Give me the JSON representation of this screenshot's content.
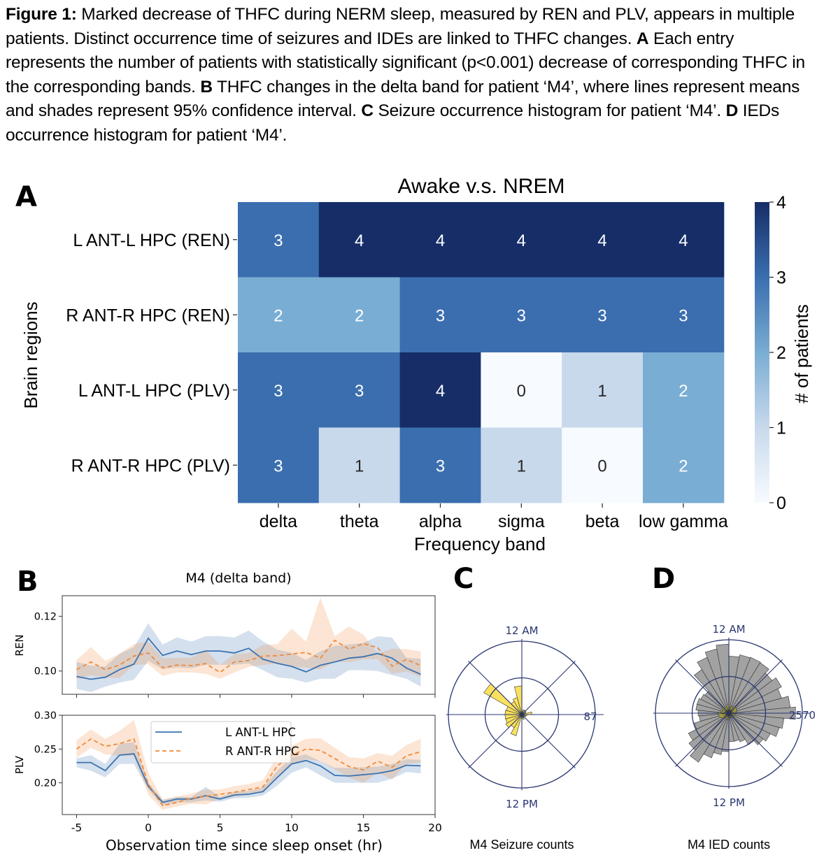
{
  "caption": {
    "segments": [
      {
        "bold": true,
        "text": "Figure 1:"
      },
      {
        "bold": false,
        "text": " Marked decrease of THFC during NERM sleep, measured by REN and PLV, appears in multiple patients. Distinct occurrence time of seizures and IDEs are linked to THFC changes. "
      },
      {
        "bold": true,
        "text": "A"
      },
      {
        "bold": false,
        "text": " Each entry represents the number of patients with statistically significant (p<0.001) decrease of corresponding THFC in the corresponding bands. "
      },
      {
        "bold": true,
        "text": "B"
      },
      {
        "bold": false,
        "text": " THFC changes in the delta band for patient ‘M4’, where lines represent means and shades represent 95% confidence interval. "
      },
      {
        "bold": true,
        "text": "C"
      },
      {
        "bold": false,
        "text": " Seizure occurrence histogram for patient ‘M4’. "
      },
      {
        "bold": true,
        "text": "D"
      },
      {
        "bold": false,
        "text": " IEDs occurrence histogram for patient ‘M4’."
      }
    ]
  },
  "panel_letters": {
    "a": "A",
    "b": "B",
    "c": "C",
    "d": "D"
  },
  "chart_data": [
    {
      "id": "A",
      "type": "heatmap",
      "title": "Awake v.s. NREM",
      "xlabel": "Frequency band",
      "ylabel": "Brain regions",
      "x_categories": [
        "delta",
        "theta",
        "alpha",
        "sigma",
        "beta",
        "low gamma"
      ],
      "y_categories": [
        "L ANT-L HPC (REN)",
        "R ANT-R HPC (REN)",
        "L ANT-L HPC (PLV)",
        "R ANT-R HPC (PLV)"
      ],
      "values": [
        [
          3,
          4,
          4,
          4,
          4,
          4
        ],
        [
          2,
          2,
          3,
          3,
          3,
          3
        ],
        [
          3,
          3,
          4,
          0,
          1,
          2
        ],
        [
          3,
          1,
          3,
          1,
          0,
          2
        ]
      ],
      "colorbar": {
        "label": "# of patients",
        "range": [
          0,
          4
        ],
        "ticks": [
          "0",
          "1",
          "2",
          "3",
          "4"
        ],
        "colormap": "Blues"
      },
      "colors": {
        "0": "#f7fbff",
        "1": "#c8d9ec",
        "2": "#7aadd3",
        "3": "#3a6eaf",
        "4": "#162d67"
      }
    },
    {
      "id": "B",
      "type": "line",
      "title": "M4 (delta band)",
      "xlabel": "Observation time since sleep onset (hr)",
      "x": [
        -5,
        -4,
        -3,
        -2,
        -1,
        0,
        1,
        2,
        3,
        4,
        5,
        6,
        7,
        8,
        9,
        10,
        11,
        12,
        13,
        14,
        15,
        16,
        17,
        18,
        19
      ],
      "xlim": [
        -6,
        20
      ],
      "xticks": [
        "-5",
        "0",
        "5",
        "10",
        "15",
        "20"
      ],
      "legend": {
        "placement": "top-center",
        "entries": [
          "L ANT-L HPC",
          "R ANT-R HPC"
        ]
      },
      "colors": {
        "L ANT-L HPC": "#3b73b0",
        "R ANT-R HPC": "#f08a3a"
      },
      "subplots": [
        {
          "ylabel": "REN",
          "ylim": [
            0.0915,
            0.1275
          ],
          "yticks": [
            "0.10",
            "0.12"
          ],
          "series": [
            {
              "name": "L ANT-L HPC",
              "values": [
                0.098,
                0.097,
                0.0977,
                0.1005,
                0.1025,
                0.112,
                0.1057,
                0.1073,
                0.106,
                0.1073,
                0.1073,
                0.1066,
                0.1083,
                0.1043,
                0.1028,
                0.1017,
                0.0997,
                0.1021,
                0.1033,
                0.1047,
                0.1052,
                0.1064,
                0.1047,
                0.1011,
                0.0988
              ],
              "ci_low": [
                0.0935,
                0.0923,
                0.0943,
                0.0958,
                0.0968,
                0.1037,
                0.1007,
                0.1013,
                0.101,
                0.1023,
                0.1023,
                0.1023,
                0.1027,
                0.1003,
                0.0977,
                0.0972,
                0.0958,
                0.0972,
                0.0972,
                0.1003,
                0.1003,
                0.1,
                0.0985,
                0.0972,
                0.0943
              ],
              "ci_high": [
                0.1033,
                0.102,
                0.1016,
                0.1063,
                0.1087,
                0.1175,
                0.1097,
                0.1123,
                0.1107,
                0.1127,
                0.1128,
                0.1122,
                0.1148,
                0.1108,
                0.1078,
                0.1067,
                0.104,
                0.1072,
                0.1092,
                0.1097,
                0.1103,
                0.1127,
                0.1122,
                0.1048,
                0.1045
              ]
            },
            {
              "name": "R ANT-R HPC",
              "values": [
                0.1005,
                0.1033,
                0.1005,
                0.1022,
                0.1055,
                0.1066,
                0.1012,
                0.1022,
                0.102,
                0.1027,
                0.0995,
                0.1033,
                0.1038,
                0.1055,
                0.1056,
                0.1062,
                0.1068,
                0.1047,
                0.1112,
                0.108,
                0.11,
                0.1085,
                0.1018,
                0.1042,
                0.102
              ],
              "ci_low": [
                0.097,
                0.0985,
                0.0975,
                0.0975,
                0.1022,
                0.1025,
                0.0982,
                0.0995,
                0.0995,
                0.099,
                0.0972,
                0.0995,
                0.1015,
                0.1022,
                0.1028,
                0.1015,
                0.1013,
                0.1005,
                0.1035,
                0.1032,
                0.1043,
                0.1043,
                0.099,
                0.0998,
                0.0978
              ],
              "ci_high": [
                0.104,
                0.1088,
                0.1037,
                0.1063,
                0.1098,
                0.1108,
                0.1047,
                0.1048,
                0.1048,
                0.1078,
                0.1022,
                0.1062,
                0.1065,
                0.1095,
                0.1098,
                0.1155,
                0.1107,
                0.1268,
                0.1127,
                0.1163,
                0.1133,
                0.1063,
                0.1082,
                0.108,
                0.1072
              ]
            }
          ]
        },
        {
          "ylabel": "PLV",
          "ylim": [
            0.153,
            0.3
          ],
          "yticks": [
            "0.20",
            "0.25",
            "0.30"
          ],
          "series": [
            {
              "name": "L ANT-L HPC",
              "values": [
                0.23,
                0.23,
                0.218,
                0.241,
                0.243,
                0.195,
                0.171,
                0.176,
                0.176,
                0.181,
                0.176,
                0.182,
                0.183,
                0.187,
                0.208,
                0.228,
                0.233,
                0.225,
                0.211,
                0.21,
                0.212,
                0.214,
                0.218,
                0.226,
                0.225
              ],
              "ci_low": [
                0.223,
                0.218,
                0.208,
                0.228,
                0.228,
                0.19,
                0.166,
                0.171,
                0.171,
                0.174,
                0.172,
                0.177,
                0.178,
                0.181,
                0.196,
                0.215,
                0.223,
                0.211,
                0.2,
                0.2,
                0.2,
                0.2,
                0.206,
                0.216,
                0.214
              ],
              "ci_high": [
                0.236,
                0.241,
                0.228,
                0.258,
                0.26,
                0.2,
                0.175,
                0.179,
                0.179,
                0.194,
                0.179,
                0.187,
                0.188,
                0.193,
                0.218,
                0.238,
                0.242,
                0.232,
                0.222,
                0.222,
                0.223,
                0.224,
                0.228,
                0.235,
                0.234
              ]
            },
            {
              "name": "R ANT-R HPC",
              "values": [
                0.25,
                0.265,
                0.254,
                0.258,
                0.265,
                0.198,
                0.166,
                0.171,
                0.177,
                0.18,
                0.183,
                0.186,
                0.19,
                0.194,
                0.225,
                0.241,
                0.25,
                0.248,
                0.236,
                0.224,
                0.219,
                0.232,
                0.223,
                0.24,
                0.246
              ],
              "ci_low": [
                0.237,
                0.252,
                0.242,
                0.24,
                0.24,
                0.182,
                0.16,
                0.165,
                0.169,
                0.168,
                0.176,
                0.179,
                0.183,
                0.185,
                0.21,
                0.228,
                0.235,
                0.232,
                0.22,
                0.208,
                0.2,
                0.215,
                0.205,
                0.228,
                0.23
              ],
              "ci_high": [
                0.263,
                0.279,
                0.265,
                0.277,
                0.293,
                0.215,
                0.175,
                0.18,
                0.184,
                0.19,
                0.19,
                0.195,
                0.198,
                0.204,
                0.24,
                0.255,
                0.265,
                0.266,
                0.252,
                0.238,
                0.236,
                0.244,
                0.24,
                0.256,
                0.265
              ]
            }
          ]
        }
      ]
    },
    {
      "id": "C",
      "type": "polar-bar",
      "title": "M4 Seizure counts",
      "angle_labels": {
        "top": "12 AM",
        "bottom": "12 PM"
      },
      "radial_max_label": "87",
      "rmax": 87,
      "bin_hours": 1,
      "color": "#f9de4f",
      "values": [
        4,
        6,
        6,
        6,
        5,
        12,
        6,
        5,
        4,
        4,
        6,
        4,
        4,
        26,
        18,
        22,
        20,
        20,
        20,
        19,
        52,
        18,
        21,
        34
      ]
    },
    {
      "id": "D",
      "type": "polar-bar",
      "title": "M4 IED counts",
      "angle_labels": {
        "top": "12 AM",
        "bottom": "12 PM"
      },
      "radial_max_label": "2570",
      "rmax": 2570,
      "bin_hours": 0.5,
      "color": "#9a9a9a",
      "overlay_color": "#e3d640",
      "values": [
        2000,
        2080,
        2100,
        2080,
        1900,
        2060,
        1920,
        2160,
        2340,
        1940,
        1840,
        1620,
        1500,
        1300,
        1080,
        1000,
        1000,
        1350,
        1480,
        1680,
        2020,
        1750,
        1580,
        1260,
        1040,
        1080,
        1160,
        1160,
        1100,
        1050,
        1800,
        2100,
        2290,
        2420
      ],
      "overlay_values": [
        180,
        220,
        260,
        240,
        320,
        300,
        280,
        260,
        240,
        220,
        200,
        180,
        160,
        180,
        150,
        160,
        170,
        190,
        230,
        220,
        200,
        240,
        300,
        340,
        360,
        380,
        280,
        220,
        260,
        300,
        240,
        220,
        260,
        300
      ]
    }
  ]
}
